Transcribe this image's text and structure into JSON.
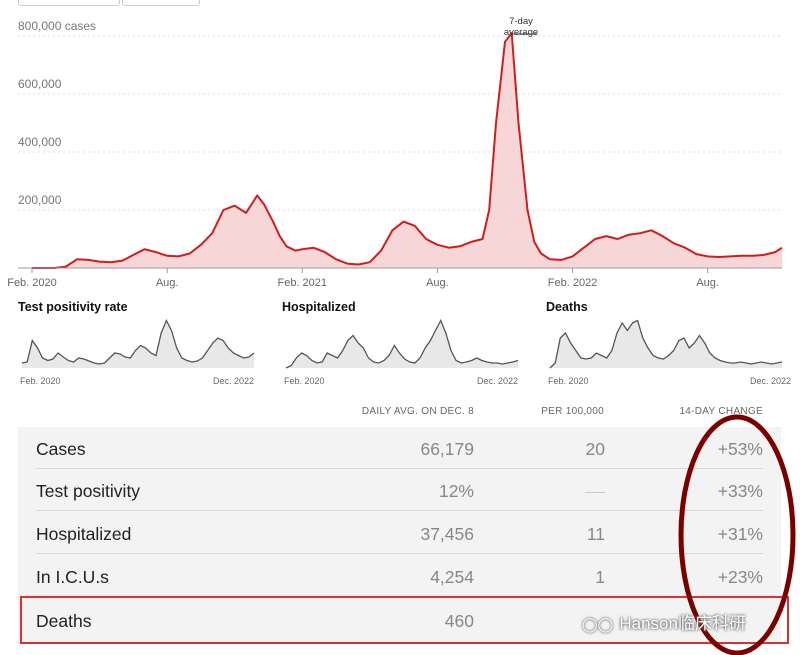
{
  "chart_data": {
    "type": "area",
    "ylabel_unit": "cases",
    "ylim": [
      0,
      800000
    ],
    "yticks": [
      "800,000",
      "600,000",
      "400,000",
      "200,000"
    ],
    "ytick_values": [
      800000,
      600000,
      400000,
      200000
    ],
    "xticks": [
      "Feb. 2020",
      "Aug.",
      "Feb. 2021",
      "Aug.",
      "Feb. 2022",
      "Aug."
    ],
    "annotation": "7-day average",
    "annotation_lines": [
      "7-day",
      "average"
    ],
    "series": [
      {
        "name": "Cases",
        "x_month_index": [
          0,
          1,
          1.5,
          2,
          2.5,
          3,
          3.5,
          4,
          4.5,
          5,
          5.5,
          6,
          6.5,
          7,
          7.5,
          8,
          8.5,
          9,
          9.5,
          10,
          10.3,
          10.7,
          11,
          11.3,
          11.7,
          12,
          12.5,
          13,
          13.5,
          14,
          14.5,
          15,
          15.5,
          16,
          16.5,
          17,
          17.5,
          18,
          18.5,
          19,
          19.5,
          20,
          20.3,
          20.6,
          21,
          21.3,
          21.6,
          22,
          22.3,
          22.6,
          23,
          23.5,
          24,
          24.5,
          25,
          25.5,
          26,
          26.5,
          27,
          27.5,
          28,
          28.5,
          29,
          29.5,
          30,
          30.5,
          31,
          31.5,
          32,
          32.5,
          33,
          33.3
        ],
        "values": [
          0,
          0,
          5000,
          30000,
          28000,
          22000,
          20000,
          25000,
          45000,
          65000,
          55000,
          42000,
          40000,
          50000,
          80000,
          120000,
          200000,
          215000,
          190000,
          250000,
          220000,
          160000,
          110000,
          75000,
          60000,
          65000,
          70000,
          55000,
          30000,
          15000,
          12000,
          20000,
          60000,
          130000,
          160000,
          145000,
          100000,
          80000,
          70000,
          75000,
          90000,
          100000,
          200000,
          500000,
          780000,
          810000,
          500000,
          200000,
          90000,
          50000,
          30000,
          28000,
          40000,
          70000,
          100000,
          110000,
          100000,
          115000,
          120000,
          130000,
          110000,
          85000,
          70000,
          48000,
          40000,
          38000,
          40000,
          42000,
          42000,
          45000,
          55000,
          70000
        ]
      }
    ]
  },
  "mini_charts": [
    {
      "title": "Test positivity rate",
      "start": "Feb. 2020",
      "end": "Dec. 2022",
      "values": [
        10,
        12,
        55,
        40,
        20,
        15,
        18,
        30,
        22,
        15,
        12,
        20,
        18,
        14,
        10,
        8,
        10,
        20,
        30,
        28,
        22,
        20,
        35,
        45,
        40,
        30,
        25,
        70,
        95,
        75,
        40,
        20,
        15,
        12,
        14,
        20,
        35,
        50,
        60,
        55,
        40,
        30,
        25,
        20,
        22,
        30
      ]
    },
    {
      "title": "Hospitalized",
      "start": "Feb. 2020",
      "end": "Dec. 2022",
      "values": [
        0,
        5,
        20,
        30,
        25,
        15,
        10,
        12,
        30,
        25,
        20,
        35,
        55,
        65,
        50,
        40,
        20,
        12,
        10,
        15,
        25,
        45,
        30,
        18,
        12,
        10,
        20,
        40,
        55,
        75,
        95,
        70,
        35,
        15,
        10,
        12,
        15,
        20,
        15,
        12,
        10,
        10,
        8,
        10,
        12,
        15
      ]
    },
    {
      "title": "Deaths",
      "start": "Feb. 2020",
      "end": "Dec. 2022",
      "values": [
        0,
        10,
        60,
        70,
        50,
        35,
        20,
        18,
        20,
        30,
        25,
        20,
        35,
        70,
        90,
        75,
        90,
        95,
        60,
        40,
        25,
        20,
        18,
        25,
        35,
        55,
        60,
        40,
        50,
        65,
        50,
        30,
        20,
        15,
        12,
        10,
        10,
        12,
        10,
        8,
        10,
        12,
        10,
        8,
        10,
        12
      ]
    }
  ],
  "table": {
    "col_heads": [
      "DAILY AVG. ON DEC. 8",
      "PER 100,000",
      "14-DAY CHANGE"
    ],
    "rows": [
      {
        "metric": "Cases",
        "avg": "66,179",
        "per": "20",
        "change": "+53%"
      },
      {
        "metric": "Test positivity",
        "avg": "12%",
        "per": "",
        "change": "+33%"
      },
      {
        "metric": "Hospitalized",
        "avg": "37,456",
        "per": "11",
        "change": "+31%"
      },
      {
        "metric": "In I.C.U.s",
        "avg": "4,254",
        "per": "1",
        "change": "+23%"
      },
      {
        "metric": "Deaths",
        "avg": "460",
        "per": "",
        "change": ""
      }
    ]
  },
  "watermark": {
    "icon": "wechat-icon",
    "text": "Hanson临床科研"
  },
  "colors": {
    "case_line": "#cc1f1f",
    "case_fill": "#f6d6d6",
    "mini_line": "#555555",
    "mini_fill": "#e8e8e8",
    "highlight_box": "#d63232",
    "oval": "#7a0000"
  }
}
